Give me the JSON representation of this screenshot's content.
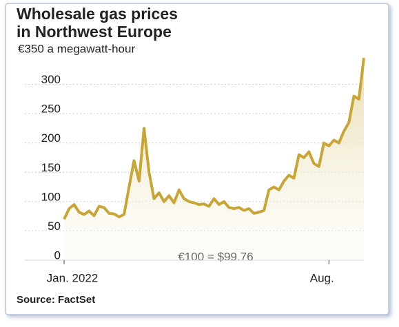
{
  "chart_data": {
    "type": "line",
    "title": "Wholesale gas prices in Northwest Europe",
    "categories": [
      "Jan. 2022",
      null,
      null,
      null,
      null,
      null,
      null,
      null,
      null,
      null,
      null,
      null,
      null,
      null,
      null,
      null,
      null,
      null,
      null,
      null,
      null,
      null,
      null,
      null,
      null,
      null,
      null,
      null,
      null,
      null,
      null,
      null,
      null,
      null,
      null,
      null,
      null,
      null,
      null,
      null,
      null,
      null,
      null,
      null,
      null,
      null,
      null,
      null,
      null,
      null,
      null,
      null,
      null,
      "Aug.",
      null,
      null,
      null,
      null,
      null,
      null,
      null
    ],
    "series": [
      {
        "color": "#c9a535",
        "values": [
          70,
          88,
          95,
          82,
          78,
          84,
          76,
          92,
          90,
          80,
          79,
          74,
          78,
          125,
          170,
          135,
          225,
          150,
          105,
          115,
          100,
          110,
          98,
          120,
          105,
          100,
          98,
          95,
          96,
          92,
          105,
          95,
          100,
          90,
          88,
          90,
          85,
          88,
          80,
          82,
          85,
          120,
          125,
          120,
          135,
          145,
          140,
          180,
          175,
          185,
          165,
          160,
          200,
          195,
          205,
          200,
          220,
          235,
          280,
          275,
          345
        ]
      }
    ],
    "ylim": [
      0,
      350
    ],
    "yticks": [
      0,
      50,
      100,
      150,
      200,
      250,
      300,
      {
        "value": 350,
        "label": "€350 a megawatt-hour"
      }
    ],
    "grid": true,
    "annotation": "€100 = $99.76",
    "source": "Source: FactSet"
  }
}
